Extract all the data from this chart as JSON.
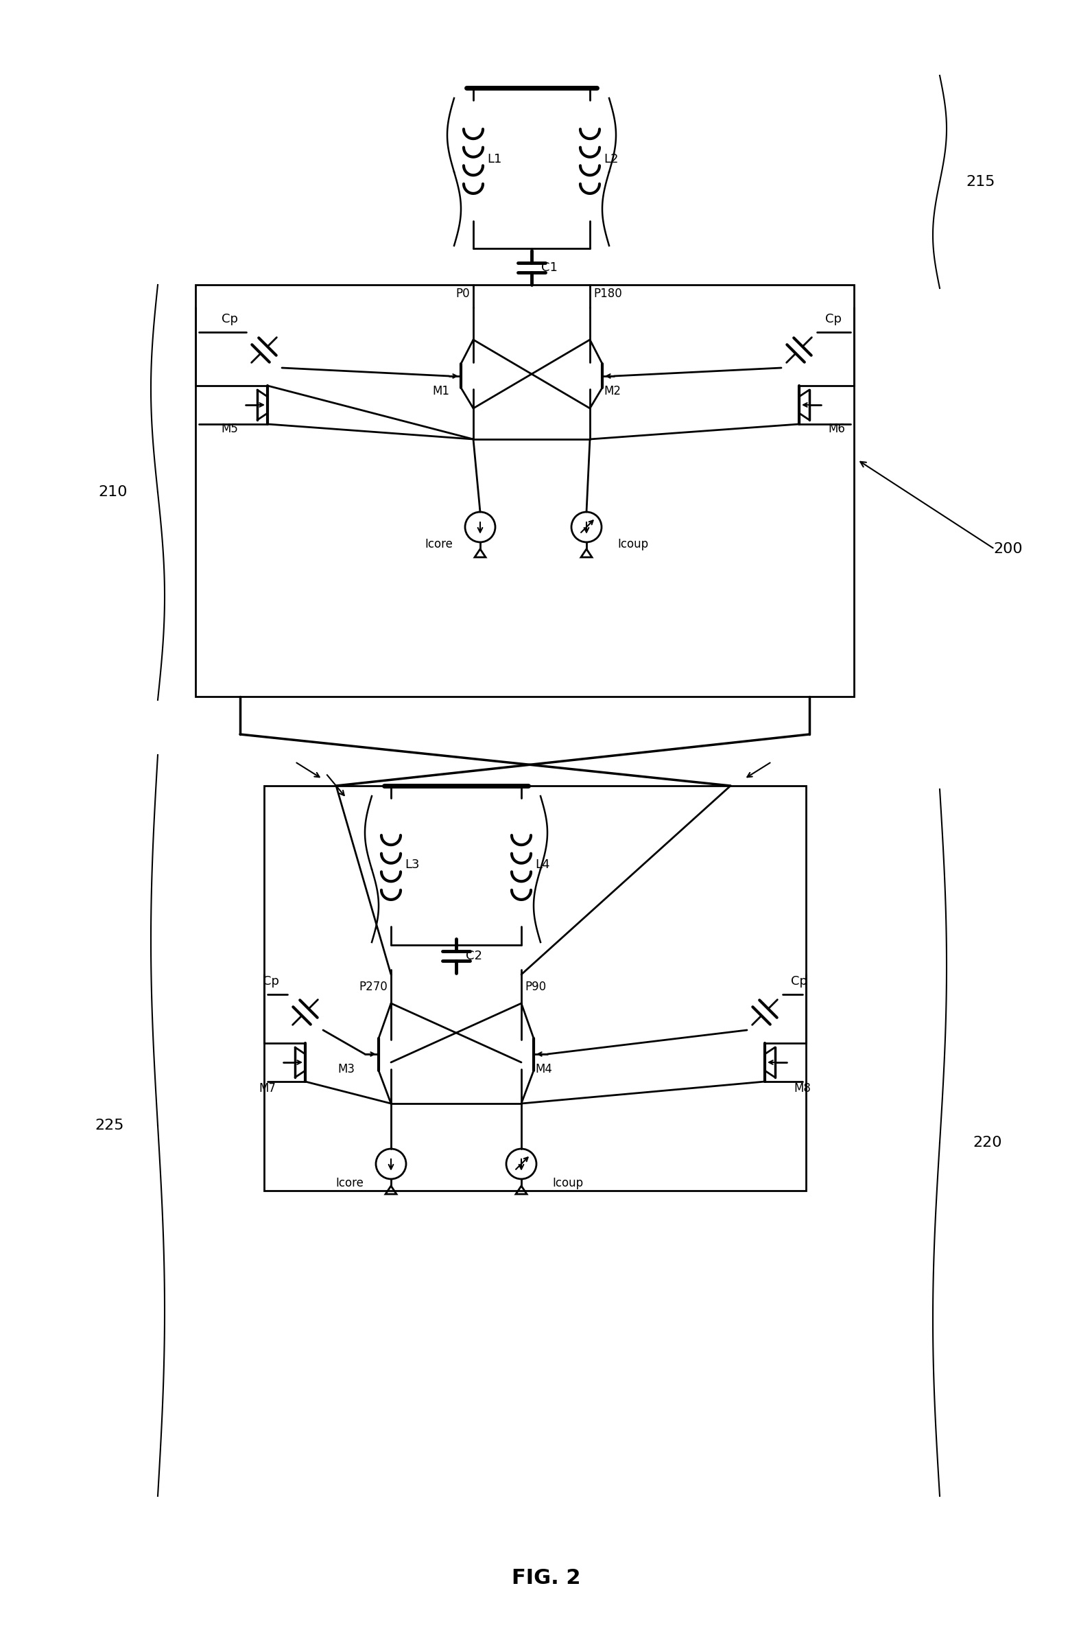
{
  "title": "FIG. 2",
  "labels": {
    "L1": "L1",
    "L2": "L2",
    "C1": "C1",
    "L3": "L3",
    "L4": "L4",
    "C2": "C2",
    "P0": "P0",
    "P180": "P180",
    "P270": "P270",
    "P90": "P90",
    "M1": "M1",
    "M2": "M2",
    "M3": "M3",
    "M4": "M4",
    "M5": "M5",
    "M6": "M6",
    "M7": "M7",
    "M8": "M8",
    "Cp": "Cp",
    "Icore": "Icore",
    "Icoup": "Icoup",
    "ref_200": "200",
    "ref_210": "210",
    "ref_215": "215",
    "ref_220": "220",
    "ref_225": "225"
  },
  "bg": "#ffffff"
}
